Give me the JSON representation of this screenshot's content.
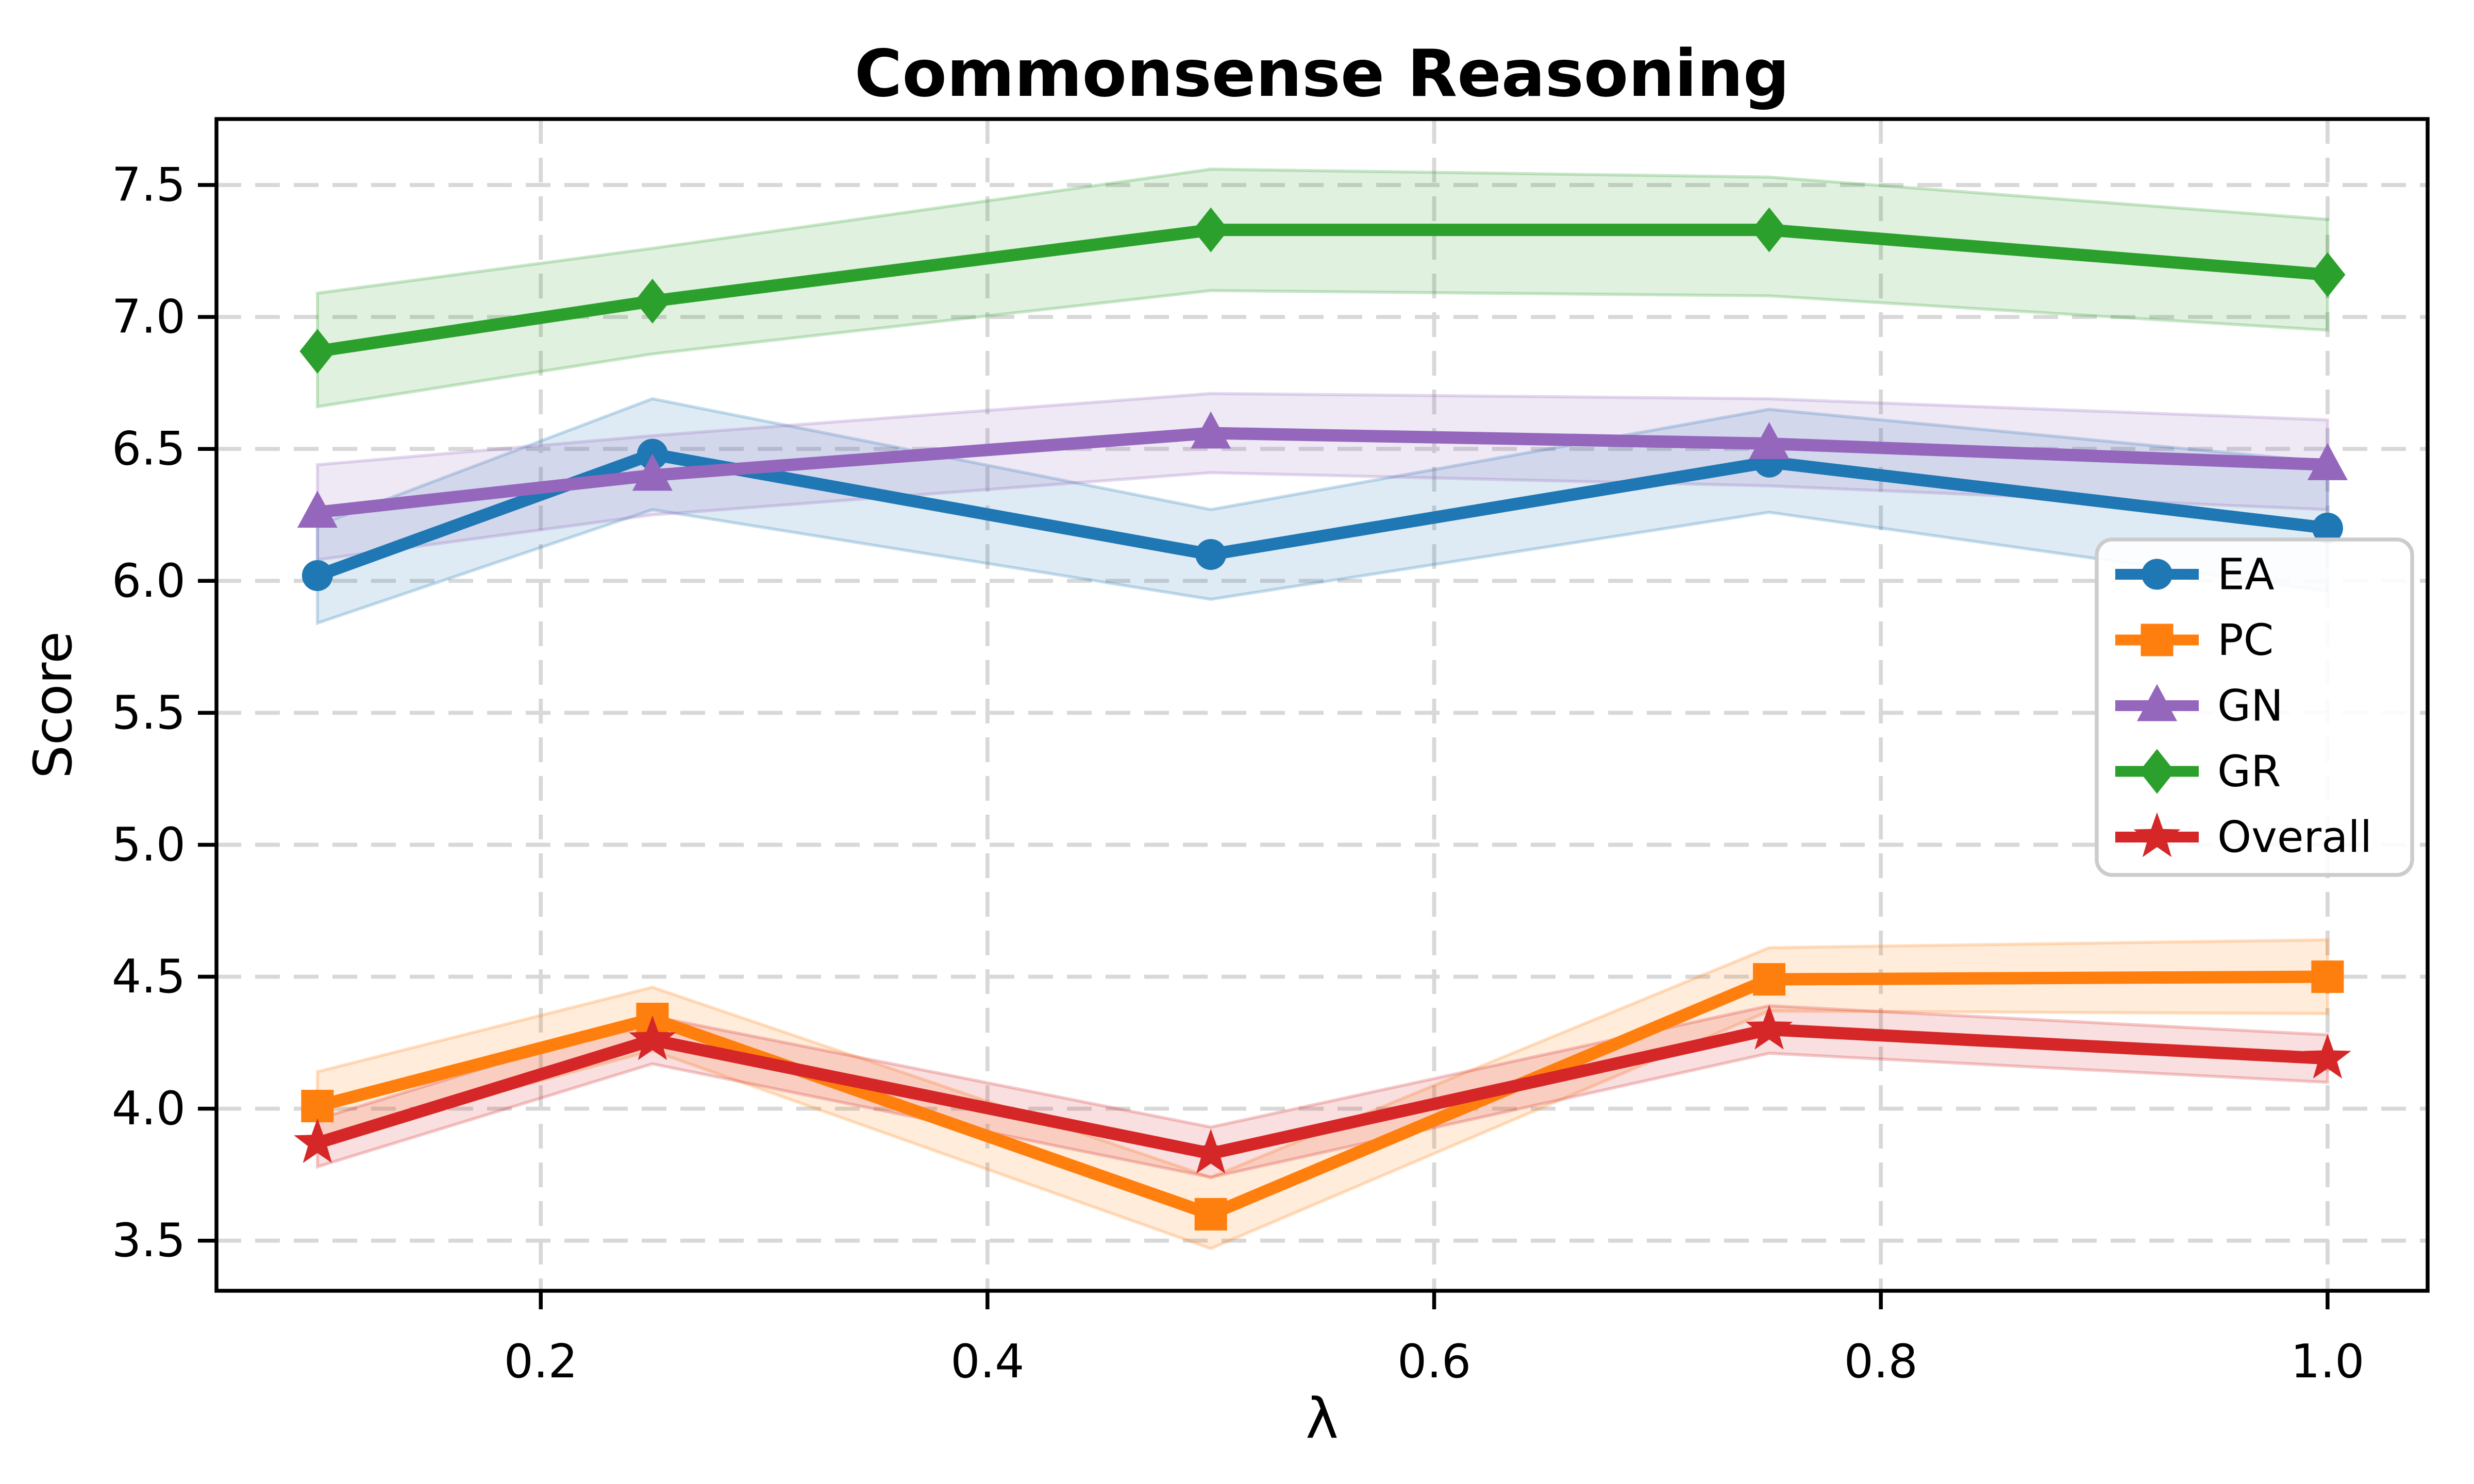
{
  "chart_data": {
    "type": "line",
    "title": "Commonsense Reasoning",
    "xlabel": "λ",
    "ylabel": "Score",
    "x": [
      0.1,
      0.25,
      0.5,
      0.75,
      1.0
    ],
    "xlim": [
      0.0548,
      1.0448
    ],
    "ylim": [
      3.31,
      7.75
    ],
    "x_tick_values": [
      0.2,
      0.4,
      0.6,
      0.8,
      1.0
    ],
    "x_tick_labels": [
      "0.2",
      "0.4",
      "0.6",
      "0.8",
      "1.0"
    ],
    "y_tick_values": [
      7.5,
      7.0,
      6.5,
      6.0,
      5.5,
      5.0,
      4.5,
      4.0,
      3.5
    ],
    "y_tick_labels": [
      "7.5",
      "7.0",
      "6.5",
      "6.0",
      "5.5",
      "5.0",
      "4.5",
      "4.0",
      "3.5"
    ],
    "grid": true,
    "grid_style": "dashed",
    "legend_position": "center right",
    "series": [
      {
        "name": "EA",
        "color": "#1f77b4",
        "marker": "circle",
        "values": [
          6.02,
          6.48,
          6.1,
          6.45,
          6.2
        ],
        "band_upper": [
          6.21,
          6.69,
          6.27,
          6.65,
          6.45
        ],
        "band_lower": [
          5.84,
          6.27,
          5.93,
          6.26,
          5.96
        ]
      },
      {
        "name": "PC",
        "color": "#ff7f0e",
        "marker": "square",
        "values": [
          4.01,
          4.34,
          3.6,
          4.49,
          4.5
        ],
        "band_upper": [
          4.14,
          4.46,
          3.74,
          4.61,
          4.64
        ],
        "band_lower": [
          3.88,
          4.22,
          3.47,
          4.37,
          4.36
        ]
      },
      {
        "name": "GN",
        "color": "#9467bd",
        "marker": "triangle",
        "values": [
          6.26,
          6.4,
          6.56,
          6.52,
          6.44
        ],
        "band_upper": [
          6.44,
          6.55,
          6.71,
          6.69,
          6.61
        ],
        "band_lower": [
          6.08,
          6.25,
          6.41,
          6.36,
          6.27
        ]
      },
      {
        "name": "GR",
        "color": "#2ca02c",
        "marker": "diamond",
        "values": [
          6.87,
          7.06,
          7.33,
          7.33,
          7.16
        ],
        "band_upper": [
          7.09,
          7.26,
          7.56,
          7.53,
          7.37
        ],
        "band_lower": [
          6.66,
          6.86,
          7.1,
          7.08,
          6.95
        ]
      },
      {
        "name": "Overall",
        "color": "#d62728",
        "marker": "star",
        "values": [
          3.87,
          4.26,
          3.83,
          4.3,
          4.19
        ],
        "band_upper": [
          3.96,
          4.35,
          3.93,
          4.39,
          4.28
        ],
        "band_lower": [
          3.78,
          4.17,
          3.74,
          4.21,
          4.1
        ]
      }
    ]
  }
}
